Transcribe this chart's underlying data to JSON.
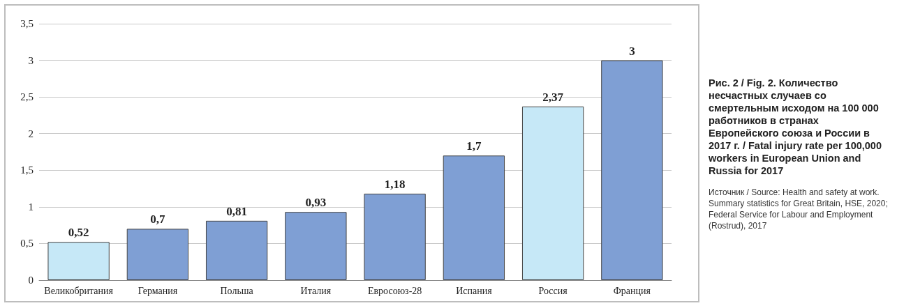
{
  "chart_data": {
    "type": "bar",
    "title": "Рис. 2 / Fig. 2. Количество несчастных случаев со смертельным исходом на 100 000 работников в странах Европейского союза и России в 2017 г. / Fatal injury rate per 100,000 workers in European Union and Russia for 2017",
    "annotations": [
      "Источник / Source: Health and safety at work. Summary statistics for Great Britain, HSE, 2020; Federal Service for Labour and Employment (Rostrud), 2017"
    ],
    "categories": [
      "Великобритания",
      "Германия",
      "Польша",
      "Италия",
      "Евросоюз-28",
      "Испания",
      "Россия",
      "Франция"
    ],
    "values": [
      0.52,
      0.7,
      0.81,
      0.93,
      1.18,
      1.7,
      2.37,
      3
    ],
    "colors": [
      "#c6e8f7",
      "#7f9fd4",
      "#7f9fd4",
      "#7f9fd4",
      "#7f9fd4",
      "#7f9fd4",
      "#c6e8f7",
      "#7f9fd4"
    ],
    "value_labels": [
      "0,52",
      "0,7",
      "0,81",
      "0,93",
      "1,18",
      "1,7",
      "2,37",
      "3"
    ],
    "ylim": [
      0,
      3.5
    ],
    "yticks": [
      0,
      {
        "value": 0.5,
        "label": "0,5"
      },
      1,
      {
        "value": 1.5,
        "label": "1,5"
      },
      2,
      {
        "value": 2.5,
        "label": "2,5"
      },
      3,
      {
        "value": 3.5,
        "label": "3,5"
      }
    ],
    "grid": true
  }
}
